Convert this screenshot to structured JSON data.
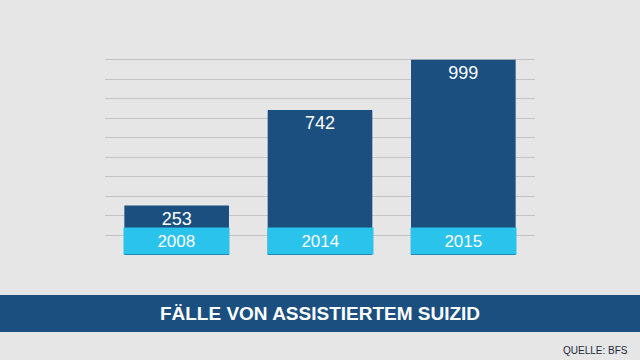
{
  "chart_data": {
    "type": "bar",
    "title": "FÄLLE VON ASSISTIERTEM SUIZID",
    "source": "QUELLE: BFS",
    "categories": [
      "2008",
      "2014",
      "2015"
    ],
    "values": [
      253,
      742,
      999
    ],
    "color": "#1b4f80",
    "ylim": [
      0,
      1100
    ],
    "yticks": [
      0,
      100,
      200,
      300,
      400,
      500,
      600,
      700,
      800,
      900,
      1000,
      1100
    ],
    "grid": true,
    "data_labels": true,
    "tick_labels": "x"
  }
}
